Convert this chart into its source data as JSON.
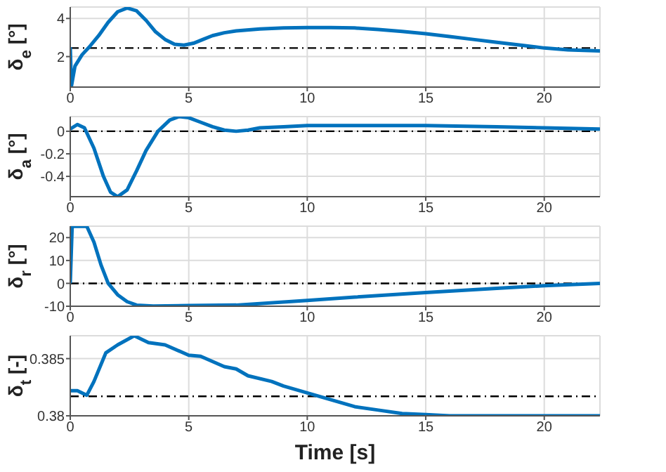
{
  "chart_data": [
    {
      "type": "line",
      "ylabel": "δ$_{e}$ [°]",
      "xlim": [
        0,
        22.35
      ],
      "xticks": [
        0,
        5,
        10,
        15,
        20
      ],
      "ylim": [
        0.4,
        4.6
      ],
      "yticks": [
        2,
        4
      ],
      "grid": true,
      "marker": "none",
      "series": [
        {
          "color": "#0072bd",
          "x": [
            0,
            0.05,
            0.2,
            0.5,
            0.8,
            1.2,
            1.6,
            2,
            2.4,
            2.8,
            3.2,
            3.6,
            4,
            4.4,
            4.8,
            5.2,
            5.6,
            6,
            6.5,
            7,
            8,
            9,
            10,
            11,
            12,
            13,
            14,
            15,
            16,
            17,
            18,
            19,
            20,
            21,
            22.35
          ],
          "values": [
            2.5,
            0.45,
            1.5,
            2.1,
            2.5,
            3.1,
            3.8,
            4.35,
            4.55,
            4.4,
            3.9,
            3.3,
            2.9,
            2.65,
            2.6,
            2.7,
            2.9,
            3.1,
            3.25,
            3.35,
            3.45,
            3.5,
            3.52,
            3.52,
            3.5,
            3.42,
            3.32,
            3.2,
            3.05,
            2.9,
            2.75,
            2.6,
            2.45,
            2.35,
            2.3
          ]
        }
      ],
      "ref_lines": [
        {
          "axis": "y",
          "value": 2.45,
          "color": "#000000",
          "line_style": "dashed"
        }
      ]
    },
    {
      "type": "line",
      "ylabel": "δ$_{a}$ [°]",
      "xlim": [
        0,
        22.35
      ],
      "xticks": [
        0,
        5,
        10,
        15,
        20
      ],
      "ylim": [
        -0.58,
        0.13
      ],
      "yticks": [
        -0.4,
        -0.2,
        0
      ],
      "grid": true,
      "marker": "none",
      "series": [
        {
          "color": "#0072bd",
          "x": [
            0,
            0.3,
            0.6,
            1,
            1.4,
            1.7,
            2,
            2.4,
            2.8,
            3.2,
            3.7,
            4.2,
            4.6,
            5,
            5.5,
            6,
            6.5,
            7,
            7.5,
            8,
            9,
            10,
            12,
            15,
            18,
            20,
            22.35
          ],
          "values": [
            0.02,
            0.06,
            0.03,
            -0.15,
            -0.4,
            -0.54,
            -0.58,
            -0.52,
            -0.35,
            -0.17,
            0,
            0.1,
            0.13,
            0.12,
            0.08,
            0.04,
            0.01,
            0,
            0.01,
            0.03,
            0.04,
            0.05,
            0.05,
            0.05,
            0.04,
            0.03,
            0.02
          ]
        }
      ],
      "ref_lines": [
        {
          "axis": "y",
          "value": 0,
          "color": "#000000",
          "line_style": "dashed"
        }
      ]
    },
    {
      "type": "line",
      "ylabel": "δ$_{r}$ [°]",
      "xlim": [
        0,
        22.35
      ],
      "xticks": [
        0,
        5,
        10,
        15,
        20
      ],
      "ylim": [
        -10,
        25
      ],
      "yticks": [
        -10,
        0,
        10,
        20
      ],
      "grid": true,
      "marker": "none",
      "series": [
        {
          "color": "#0072bd",
          "x": [
            0,
            0.08,
            0.4,
            0.7,
            1,
            1.3,
            1.6,
            2,
            2.4,
            2.8,
            3.5,
            5,
            7,
            10,
            12,
            15,
            18,
            20,
            22.35
          ],
          "values": [
            0,
            24.9,
            24.9,
            24.9,
            18,
            8,
            0,
            -5,
            -8,
            -9.5,
            -9.9,
            -9.7,
            -9.5,
            -7.5,
            -6,
            -4,
            -2.2,
            -1,
            0
          ]
        }
      ],
      "ref_lines": [
        {
          "axis": "y",
          "value": 0,
          "color": "#000000",
          "line_style": "dashed"
        }
      ]
    },
    {
      "type": "line",
      "ylabel": "δ$_{t}$ [-]",
      "xlabel": "Time [s]",
      "xlim": [
        0,
        22.35
      ],
      "xticks": [
        0,
        5,
        10,
        15,
        20
      ],
      "ylim": [
        0.38,
        0.387
      ],
      "yticks": [
        0.38,
        0.385
      ],
      "grid": true,
      "marker": "none",
      "series": [
        {
          "color": "#0072bd",
          "x": [
            0,
            0.3,
            0.7,
            1,
            1.5,
            2,
            2.7,
            3.3,
            4,
            5,
            5.5,
            6.5,
            7,
            7.5,
            8.5,
            9,
            10,
            11,
            12,
            13,
            14,
            15,
            16,
            18,
            20,
            22.35
          ],
          "values": [
            0.3822,
            0.3822,
            0.3818,
            0.383,
            0.3855,
            0.3862,
            0.387,
            0.3864,
            0.3862,
            0.3853,
            0.3852,
            0.3843,
            0.3841,
            0.3835,
            0.383,
            0.3826,
            0.382,
            0.3814,
            0.3808,
            0.3805,
            0.3802,
            0.3801,
            0.38,
            0.38,
            0.38,
            0.38
          ]
        }
      ],
      "ref_lines": [
        {
          "axis": "y",
          "value": 0.3817,
          "color": "#000000",
          "line_style": "dashed"
        }
      ]
    }
  ]
}
